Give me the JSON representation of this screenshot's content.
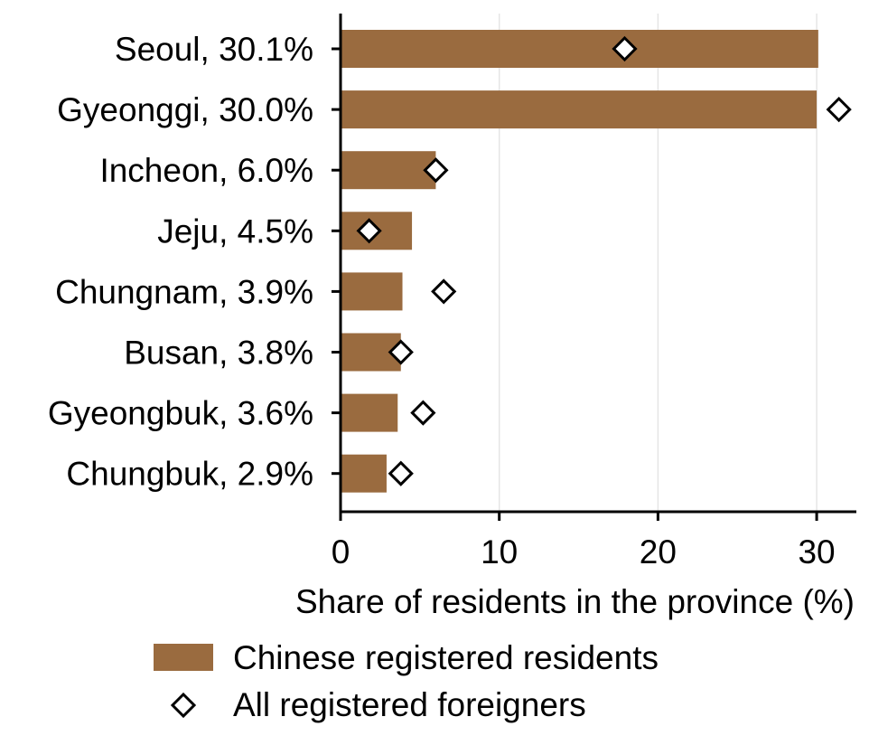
{
  "chart_data": {
    "type": "bar",
    "orientation": "horizontal",
    "categories": [
      "Seoul, 30.1%",
      "Gyeonggi, 30.0%",
      "Incheon, 6.0%",
      "Jeju, 4.5%",
      "Chungnam, 3.9%",
      "Busan, 3.8%",
      "Gyeongbuk, 3.6%",
      "Chungbuk, 2.9%"
    ],
    "series": [
      {
        "name": "Chinese registered residents",
        "type": "bar",
        "values": [
          30.1,
          30.0,
          6.0,
          4.5,
          3.9,
          3.8,
          3.6,
          2.9
        ]
      },
      {
        "name": "All registered foreigners",
        "type": "scatter",
        "marker": "diamond",
        "values": [
          17.9,
          31.4,
          6.0,
          1.8,
          6.5,
          3.8,
          5.2,
          3.8
        ]
      }
    ],
    "title": "",
    "xlabel": "Share of residents in the province (%)",
    "ylabel": "",
    "xlim": [
      0,
      32.5
    ],
    "xticks": [
      0,
      10,
      20,
      30
    ],
    "xtick_labels": [
      "0",
      "10",
      "20",
      "30"
    ],
    "grid": "vertical",
    "legend_position": "bottom",
    "colors": {
      "bar": "#9A6B3F",
      "marker_fill": "#FFFFFF",
      "marker_edge": "#000000",
      "grid": "#E5E5E5",
      "axis": "#000000"
    }
  }
}
